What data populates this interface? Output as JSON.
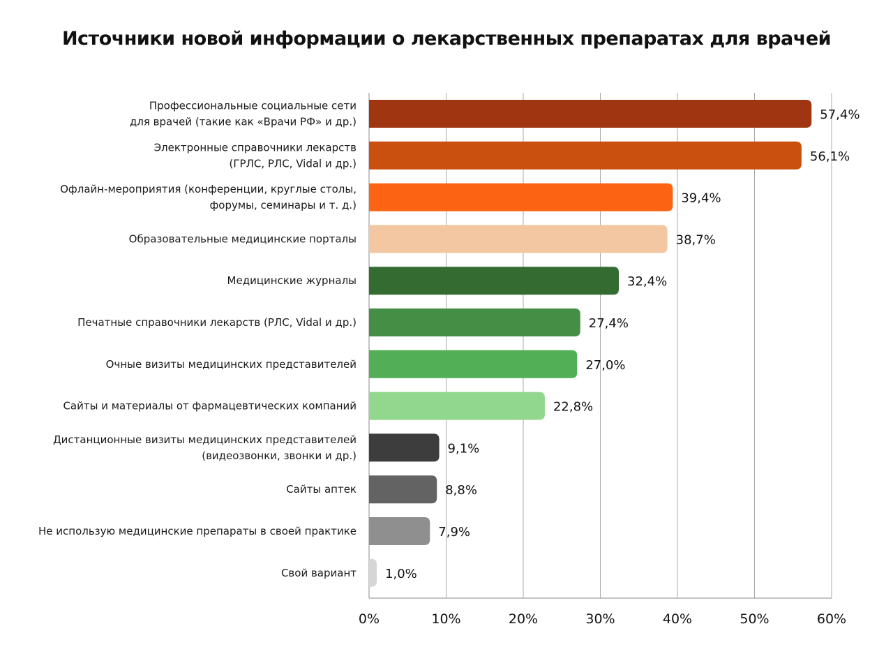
{
  "chart_data": {
    "type": "bar",
    "orientation": "horizontal",
    "title": "Источники новой информации о лекарственных препаратах для врачей",
    "xlabel": "",
    "ylabel": "",
    "xlim": [
      0,
      60
    ],
    "grid": true,
    "legend": "none",
    "ticks": [
      "0%",
      "10%",
      "20%",
      "30%",
      "40%",
      "50%",
      "60%"
    ],
    "categories": [
      [
        "Профессиональные социальные сети",
        "для врачей (такие как «Врачи РФ» и др.)"
      ],
      [
        "Электронные справочники лекарств",
        "(ГРЛС, РЛС, Vidal и др.)"
      ],
      [
        "Офлайн-мероприятия (конференции, круглые столы,",
        "форумы, семинары и т. д.)"
      ],
      [
        "Образовательные медицинские порталы"
      ],
      [
        "Медицинские журналы"
      ],
      [
        "Печатные справочники лекарств (РЛС, Vidal и др.)"
      ],
      [
        "Очные визиты медицинских представителей"
      ],
      [
        "Сайты и материалы от фармацевтических компаний"
      ],
      [
        "Дистанционные визиты медицинских представителей",
        "(видеозвонки, звонки и др.)"
      ],
      [
        "Сайты аптек"
      ],
      [
        "Не использую медицинские препараты в своей практике"
      ],
      [
        "Свой вариант"
      ]
    ],
    "values": [
      57.4,
      56.1,
      39.4,
      38.7,
      32.4,
      27.4,
      27.0,
      22.8,
      9.1,
      8.8,
      7.9,
      1.0
    ],
    "value_labels": [
      "57,4%",
      "56,1%",
      "39,4%",
      "38,7%",
      "32,4%",
      "27,4%",
      "27,0%",
      "22,8%",
      "9,1%",
      "8,8%",
      "7,9%",
      "1,0%"
    ],
    "colors": [
      "#A03512",
      "#C9500F",
      "#FC6414",
      "#F2C7A1",
      "#336B30",
      "#448F45",
      "#53AF55",
      "#92D78E",
      "#3D3D3D",
      "#636363",
      "#8F8F8F",
      "#D6D6D6"
    ]
  }
}
